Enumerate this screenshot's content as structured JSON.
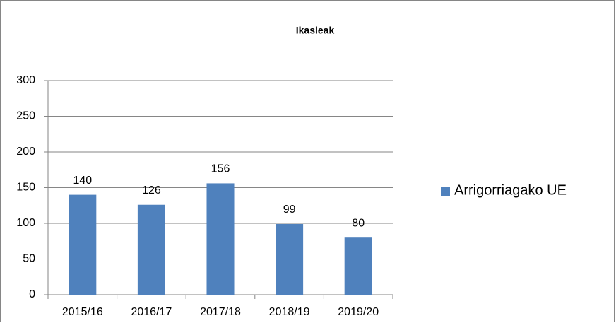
{
  "chart_data": {
    "type": "bar",
    "title": "Ikasleak",
    "categories": [
      "2015/16",
      "2016/17",
      "2017/18",
      "2018/19",
      "2019/20"
    ],
    "series": [
      {
        "name": "Arrigorriagako UE",
        "color": "#4f81bd",
        "values": [
          140,
          126,
          156,
          99,
          80
        ]
      }
    ],
    "ylim": [
      0,
      300
    ],
    "yticks": [
      0,
      50,
      100,
      150,
      200,
      250,
      300
    ],
    "grid": true,
    "legend": "right",
    "data_labels": true
  }
}
